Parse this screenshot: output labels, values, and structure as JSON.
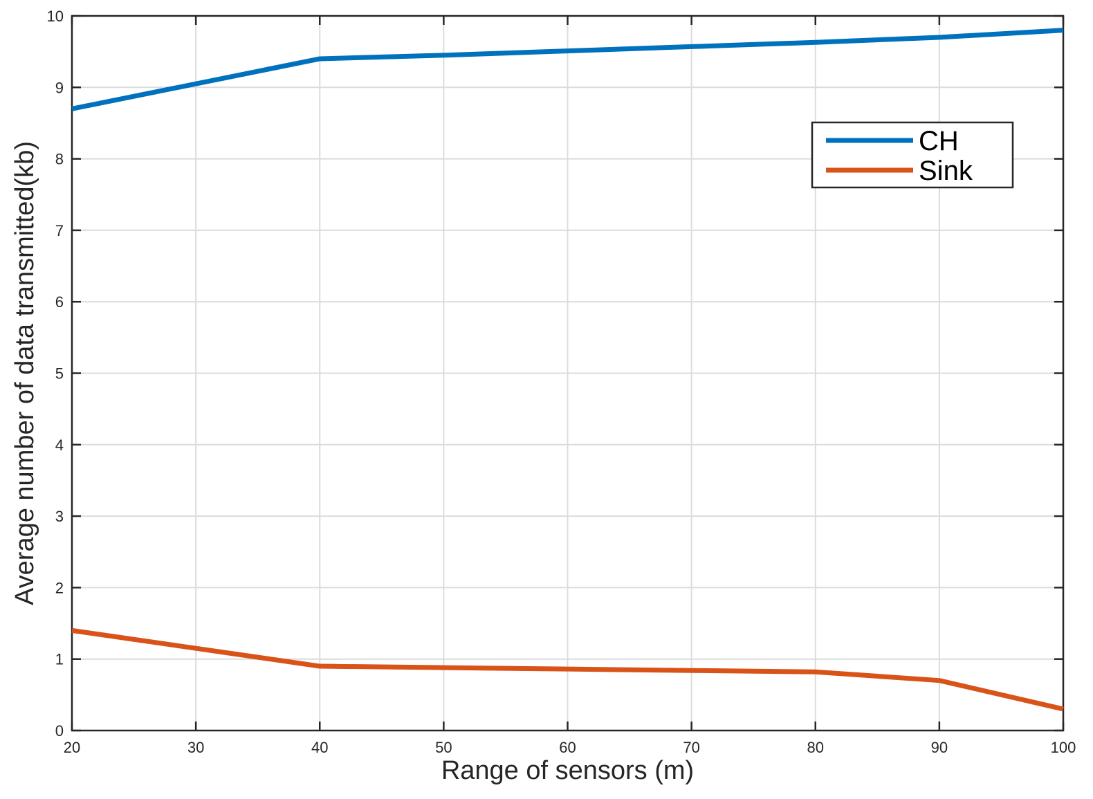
{
  "chart_data": {
    "type": "line",
    "title": "",
    "xlabel": "Range of sensors (m)",
    "ylabel": "Average number of data transmitted(kb)",
    "x": [
      20,
      40,
      50,
      60,
      70,
      80,
      90,
      100
    ],
    "series": [
      {
        "name": "CH",
        "color": "#0072BD",
        "values": [
          8.7,
          9.4,
          9.45,
          9.51,
          9.57,
          9.63,
          9.7,
          9.8
        ]
      },
      {
        "name": "Sink",
        "color": "#D95319",
        "values": [
          1.4,
          0.9,
          0.88,
          0.86,
          0.84,
          0.82,
          0.7,
          0.3
        ]
      }
    ],
    "xlim": [
      20,
      100
    ],
    "ylim": [
      0,
      10
    ],
    "xticks": [
      "20",
      "30",
      "40",
      "50",
      "60",
      "70",
      "80",
      "90",
      "100"
    ],
    "yticks": [
      "0",
      "1",
      "2",
      "3",
      "4",
      "5",
      "6",
      "7",
      "8",
      "9",
      "10"
    ],
    "grid": true,
    "legend": "upper-right"
  }
}
